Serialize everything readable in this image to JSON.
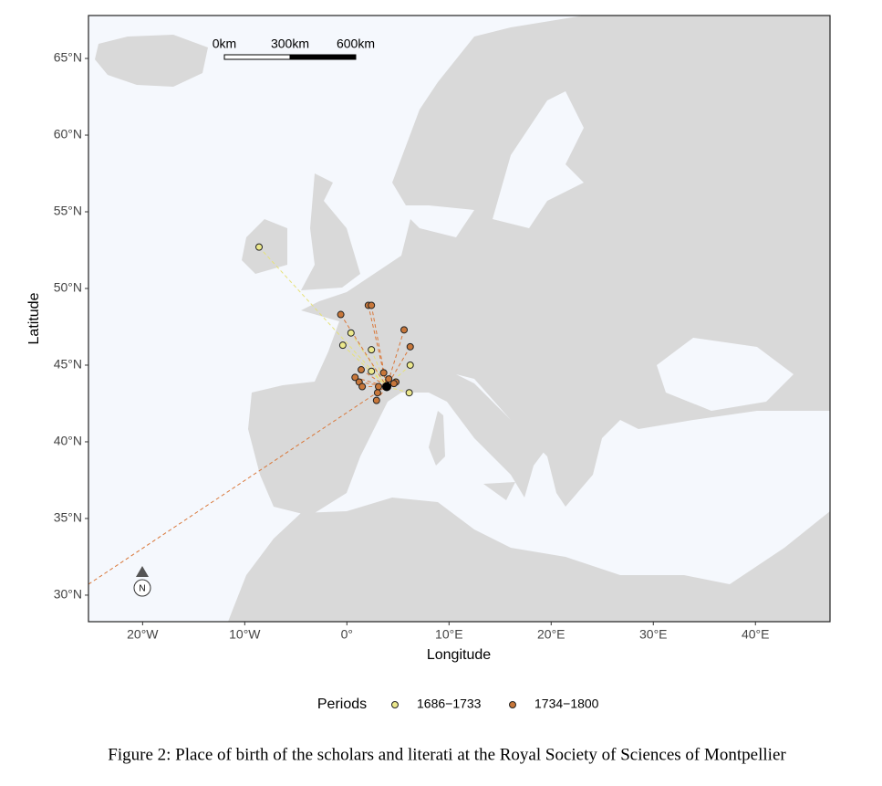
{
  "chart_data": {
    "type": "scatter",
    "x_label": "Longitude",
    "y_label": "Latitude",
    "xlim": [
      -25.3,
      47.3
    ],
    "ylim": [
      28.27,
      67.8
    ],
    "xticks": [
      {
        "value": -20,
        "label": "20°W"
      },
      {
        "value": -10,
        "label": "10°W"
      },
      {
        "value": 0,
        "label": "0°"
      },
      {
        "value": 10,
        "label": "10°E"
      },
      {
        "value": 20,
        "label": "20°E"
      },
      {
        "value": 30,
        "label": "30°E"
      },
      {
        "value": 40,
        "label": "40°E"
      }
    ],
    "yticks": [
      {
        "value": 30,
        "label": "30°N"
      },
      {
        "value": 35,
        "label": "35°N"
      },
      {
        "value": 40,
        "label": "40°N"
      },
      {
        "value": 45,
        "label": "45°N"
      },
      {
        "value": 50,
        "label": "50°N"
      },
      {
        "value": 55,
        "label": "55°N"
      },
      {
        "value": 60,
        "label": "60°N"
      },
      {
        "value": 65,
        "label": "65°N"
      }
    ],
    "legend_title": "Periods",
    "series": [
      {
        "name": "1686−1733",
        "color": "#ece88c",
        "line_color": "#e6e27a",
        "x": [
          -8.6,
          -0.4,
          0.4,
          2.4,
          2.4,
          6.2,
          6.1
        ],
        "y": [
          52.7,
          46.3,
          47.1,
          46.0,
          44.6,
          45.0,
          43.2
        ]
      },
      {
        "name": "1734−1800",
        "color": "#c8773a",
        "line_color": "#d9783a",
        "x": [
          2.1,
          2.4,
          -0.6,
          5.6,
          6.2,
          1.4,
          3.6,
          0.8,
          1.2,
          1.5,
          3.1,
          4.1,
          4.8,
          3.0,
          2.9,
          4.6
        ],
        "y": [
          48.9,
          48.9,
          48.3,
          47.3,
          46.2,
          44.7,
          44.5,
          44.2,
          43.9,
          43.6,
          43.6,
          44.1,
          43.9,
          43.2,
          42.7,
          43.8
        ]
      }
    ],
    "target": [
      3.9,
      43.6
    ],
    "scale_bar": [
      "0km",
      "300km",
      "600km"
    ],
    "north_label": "N"
  },
  "caption": "Figure 2: Place of birth of the scholars and literati at the Royal Society of Sciences of Montpellier"
}
